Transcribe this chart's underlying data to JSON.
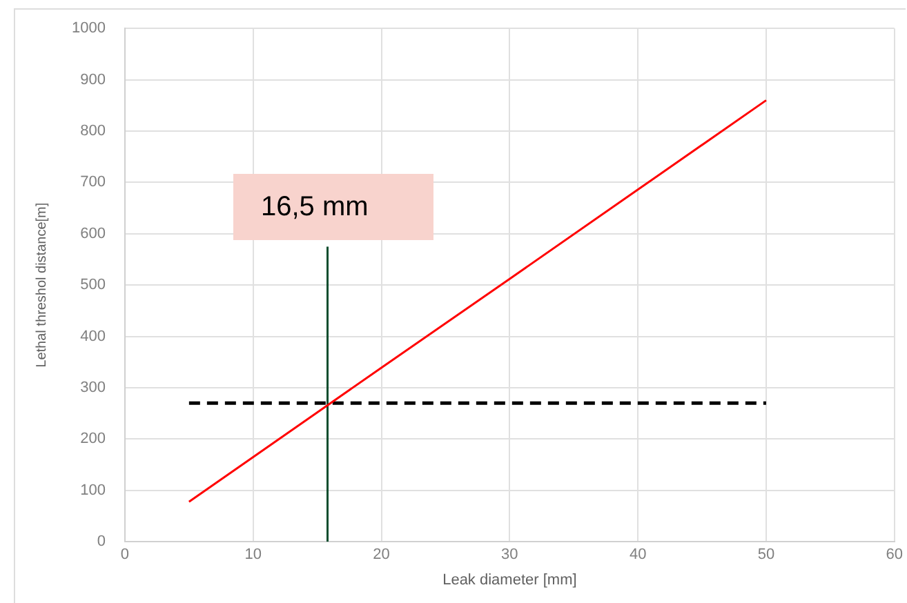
{
  "chart_data": {
    "type": "line",
    "xlabel": "Leak diameter [mm]",
    "ylabel": "Lethal threshol distance[m]",
    "xlim": [
      0,
      60
    ],
    "xticks": [
      0,
      10,
      20,
      30,
      40,
      50,
      60
    ],
    "ylim": [
      0,
      1000
    ],
    "yticks": [
      0,
      100,
      200,
      300,
      400,
      500,
      600,
      700,
      800,
      900,
      1000
    ],
    "grid": true,
    "legend": false,
    "marker": "none",
    "series": [
      {
        "color": "#ff0000",
        "x": [
          5,
          10,
          15,
          20,
          30,
          40,
          50
        ],
        "values": [
          78,
          165,
          252,
          339,
          512,
          686,
          860
        ],
        "line_style": "solid"
      },
      {
        "color": "#000000",
        "x": [
          5,
          50
        ],
        "values": [
          270,
          270
        ],
        "line_style": "dashed"
      },
      {
        "color": "#0b4d2e",
        "x": [
          15.8,
          15.8
        ],
        "values": [
          0,
          575
        ],
        "line_style": "solid"
      }
    ],
    "annotations": [
      "16,5 mm"
    ]
  }
}
